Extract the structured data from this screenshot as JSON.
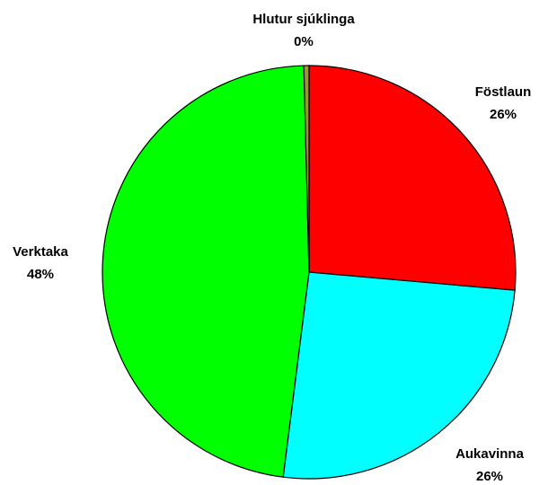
{
  "chart_data": {
    "type": "pie",
    "categories": [
      "Föstlaun",
      "Aukavinna",
      "Verktaka",
      "Hlutur sjúklinga"
    ],
    "values": [
      26.4,
      25.6,
      47.6,
      0.4
    ],
    "value_labels": [
      "26%",
      "26%",
      "48%",
      "0%"
    ],
    "colors": [
      "#ff0000",
      "#00ffff",
      "#00ff00",
      "#999933"
    ]
  }
}
